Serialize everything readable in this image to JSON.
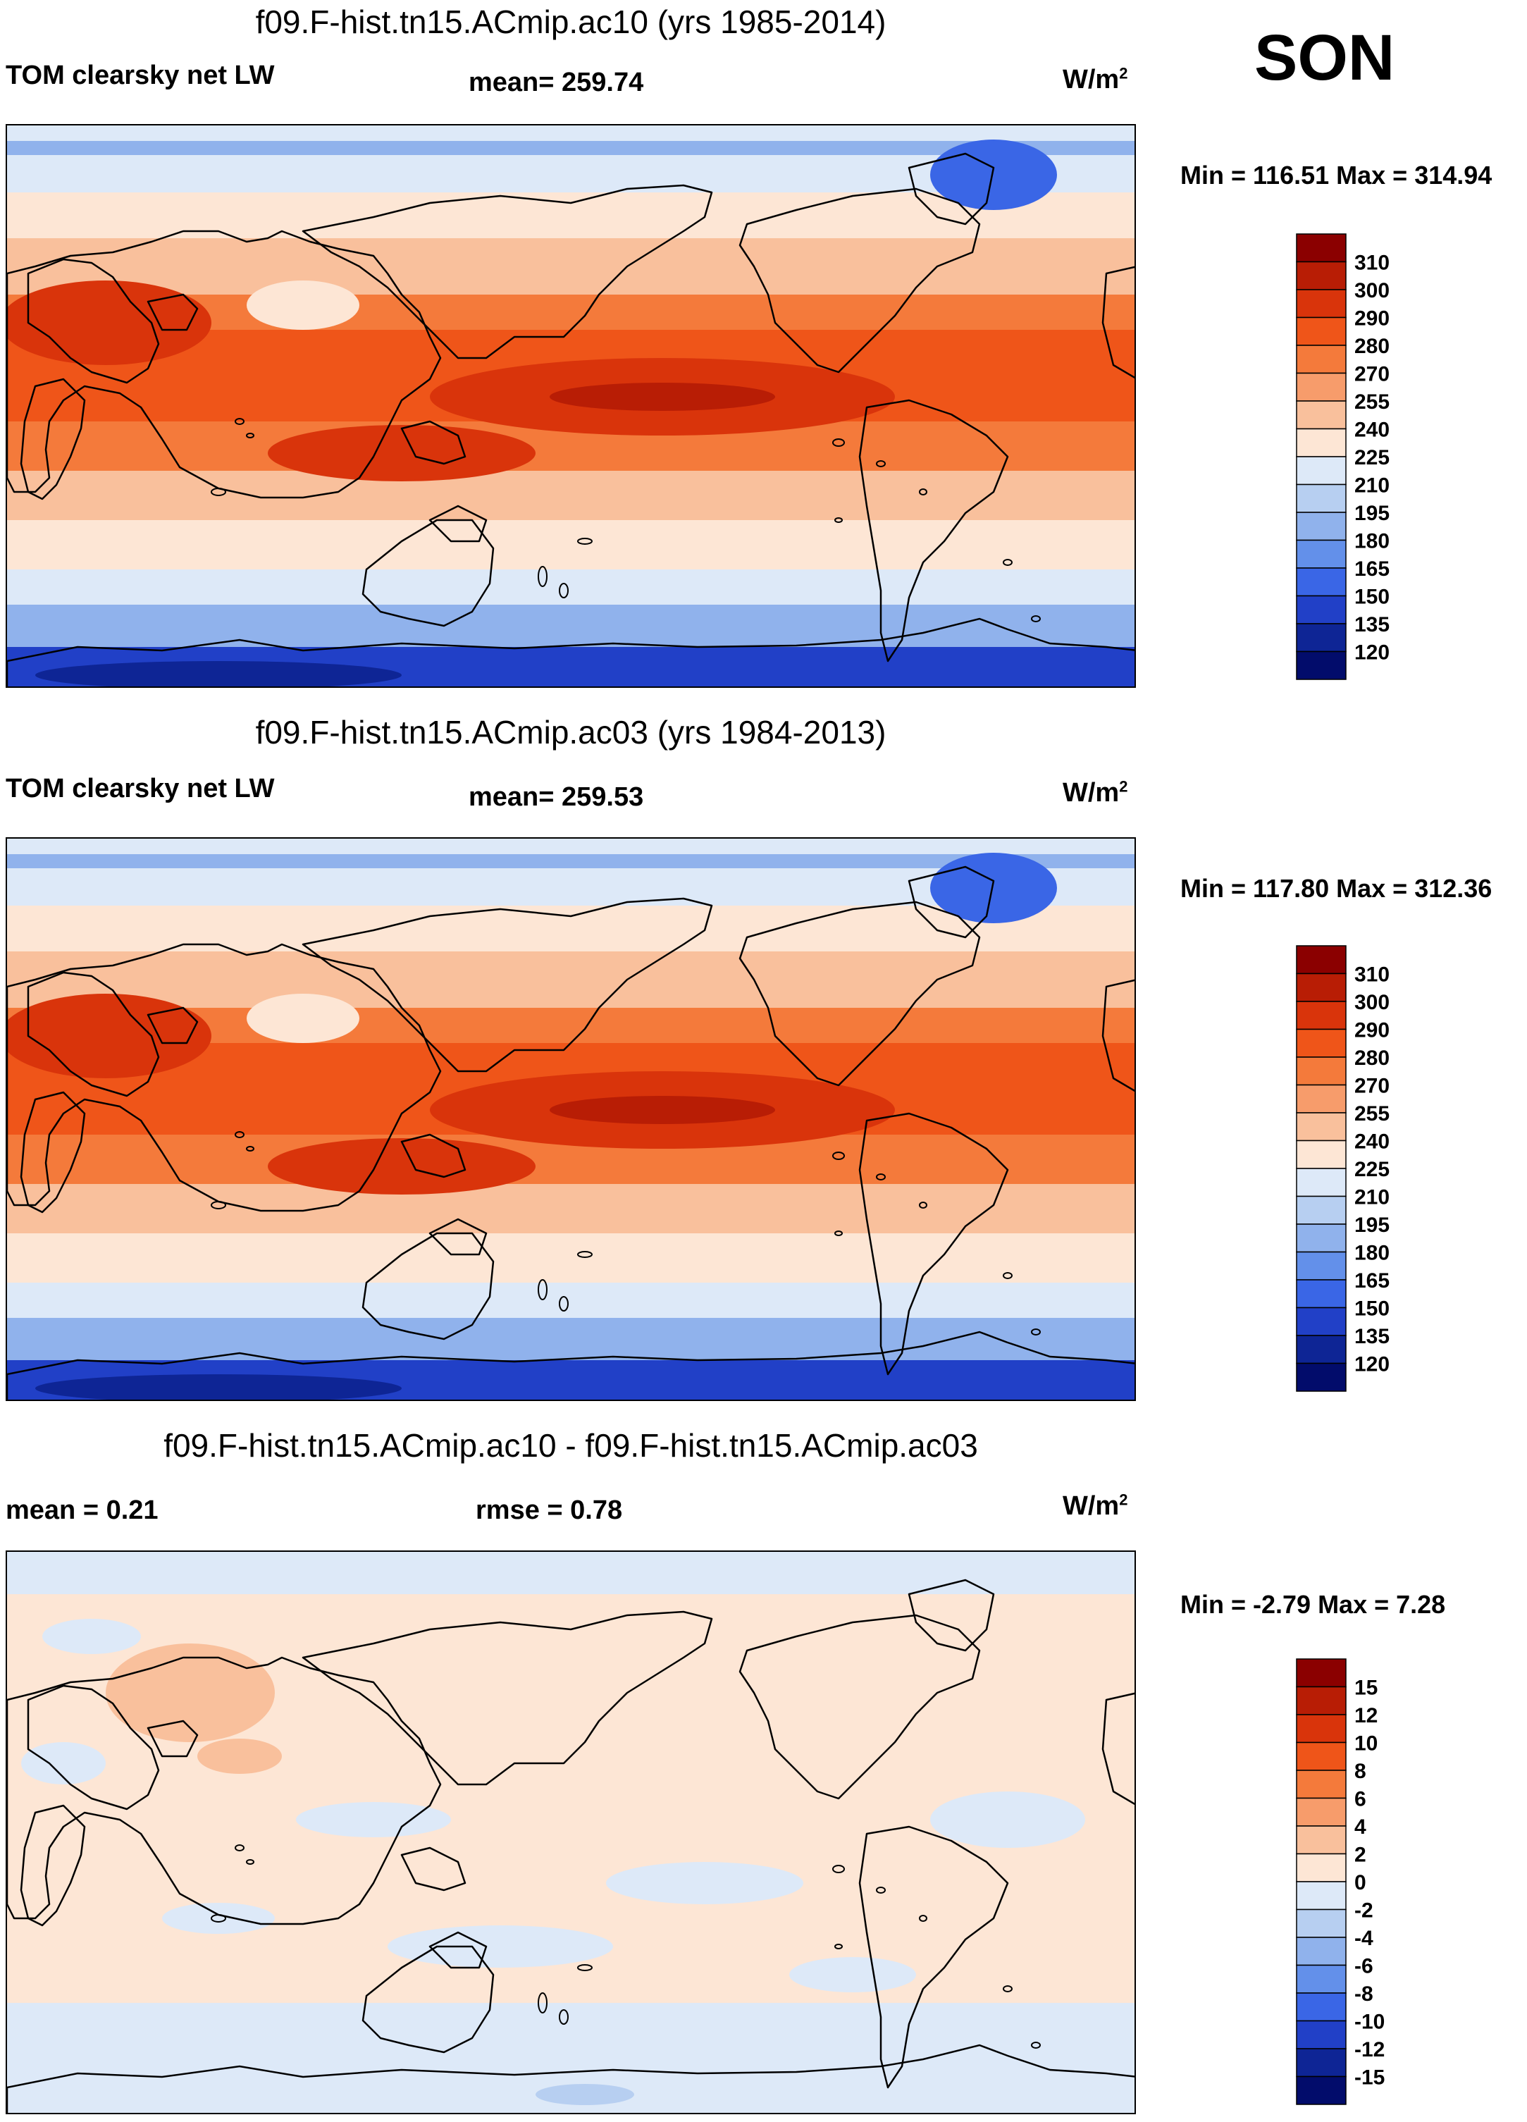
{
  "season": "SON",
  "panels": [
    {
      "title": "f09.F-hist.tn15.ACmip.ac10 (yrs 1985-2014)",
      "variable": "TOM clearsky net LW",
      "stat_left": "",
      "mean_label": "mean= 259.74",
      "units": "W/m",
      "units_sup": "2",
      "minmax": "Min = 116.51 Max = 314.94",
      "colorbar": {
        "levels": [
          "310",
          "300",
          "290",
          "280",
          "270",
          "255",
          "240",
          "225",
          "210",
          "195",
          "180",
          "165",
          "150",
          "135",
          "120"
        ],
        "colors": [
          "#8b0000",
          "#b81d05",
          "#d9340b",
          "#ef5519",
          "#f47a3b",
          "#f79c6b",
          "#f9c09c",
          "#fde6d5",
          "#dde9f8",
          "#b7cff1",
          "#90b2ec",
          "#6390ea",
          "#3a66e6",
          "#2140c7",
          "#0e2595",
          "#020c6b"
        ]
      }
    },
    {
      "title": "f09.F-hist.tn15.ACmip.ac03 (yrs 1984-2013)",
      "variable": "TOM clearsky net LW",
      "stat_left": "",
      "mean_label": "mean= 259.53",
      "units": "W/m",
      "units_sup": "2",
      "minmax": "Min = 117.80 Max = 312.36",
      "colorbar": {
        "levels": [
          "310",
          "300",
          "290",
          "280",
          "270",
          "255",
          "240",
          "225",
          "210",
          "195",
          "180",
          "165",
          "150",
          "135",
          "120"
        ],
        "colors": [
          "#8b0000",
          "#b81d05",
          "#d9340b",
          "#ef5519",
          "#f47a3b",
          "#f79c6b",
          "#f9c09c",
          "#fde6d5",
          "#dde9f8",
          "#b7cff1",
          "#90b2ec",
          "#6390ea",
          "#3a66e6",
          "#2140c7",
          "#0e2595",
          "#020c6b"
        ]
      }
    },
    {
      "title": "f09.F-hist.tn15.ACmip.ac10 - f09.F-hist.tn15.ACmip.ac03",
      "variable": "",
      "stat_left": "mean =   0.21",
      "mean_label": "rmse =   0.78",
      "units": "W/m",
      "units_sup": "2",
      "minmax": "Min =  -2.79 Max =   7.28",
      "colorbar": {
        "levels": [
          "15",
          "12",
          "10",
          "8",
          "6",
          "4",
          "2",
          "0",
          "-2",
          "-4",
          "-6",
          "-8",
          "-10",
          "-12",
          "-15"
        ],
        "colors": [
          "#8b0000",
          "#b81d05",
          "#d9340b",
          "#ef5519",
          "#f47a3b",
          "#f79c6b",
          "#f9c09c",
          "#fde6d5",
          "#dde9f8",
          "#b7cff1",
          "#90b2ec",
          "#6390ea",
          "#3a66e6",
          "#2140c7",
          "#0e2595",
          "#020c6b"
        ]
      }
    }
  ],
  "map_colors": {
    "polar_north": "#90b2ec",
    "subpolar": "#dde9f8",
    "midlat": "#fde6d5",
    "subtrop": "#f9c09c",
    "trop": "#f47a3b",
    "warmpool": "#ef5519",
    "core": "#d9340b",
    "deep": "#b81d05",
    "south_ice": "#2140c7",
    "south_deep": "#0e2595",
    "greenland": "#3a66e6",
    "coast": "#000000",
    "diff_base": "#fde6d5",
    "diff_neg": "#dde9f8",
    "diff_pos": "#f9c09c",
    "diff_neg2": "#b7cff1"
  }
}
